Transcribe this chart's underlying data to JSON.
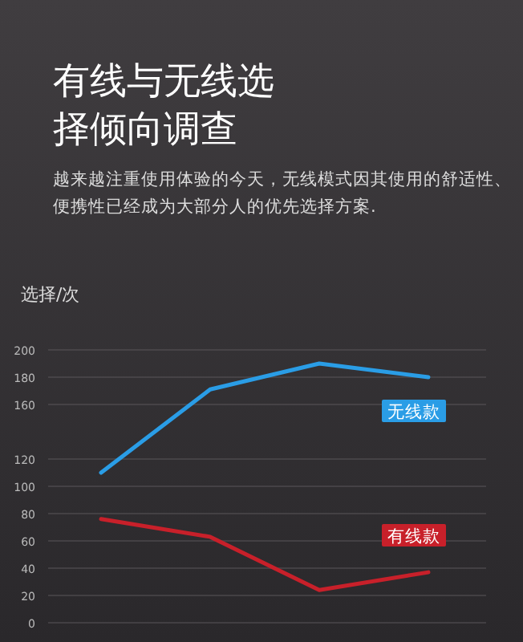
{
  "chart_data": {
    "type": "line",
    "title": "有线与无线选择倾向调查",
    "subtitle": "越来越注重使用体验的今天，无线模式因其使用的舒适性、便携性已经成为大部分人的优先选择方案.",
    "ylabel": "选择/次",
    "categories": [
      null,
      null,
      null,
      null
    ],
    "series": [
      {
        "name": "无线款",
        "color": "#2a9de6",
        "values": [
          110,
          171,
          190,
          180
        ]
      },
      {
        "name": "有线款",
        "color": "#c8202a",
        "values": [
          76,
          63,
          24,
          37
        ]
      }
    ],
    "ylim": [
      0,
      200
    ],
    "yticks": [
      0,
      20,
      40,
      60,
      80,
      100,
      120,
      160,
      180,
      200
    ],
    "grid": "y",
    "marker": "none",
    "line_style": "solid"
  }
}
